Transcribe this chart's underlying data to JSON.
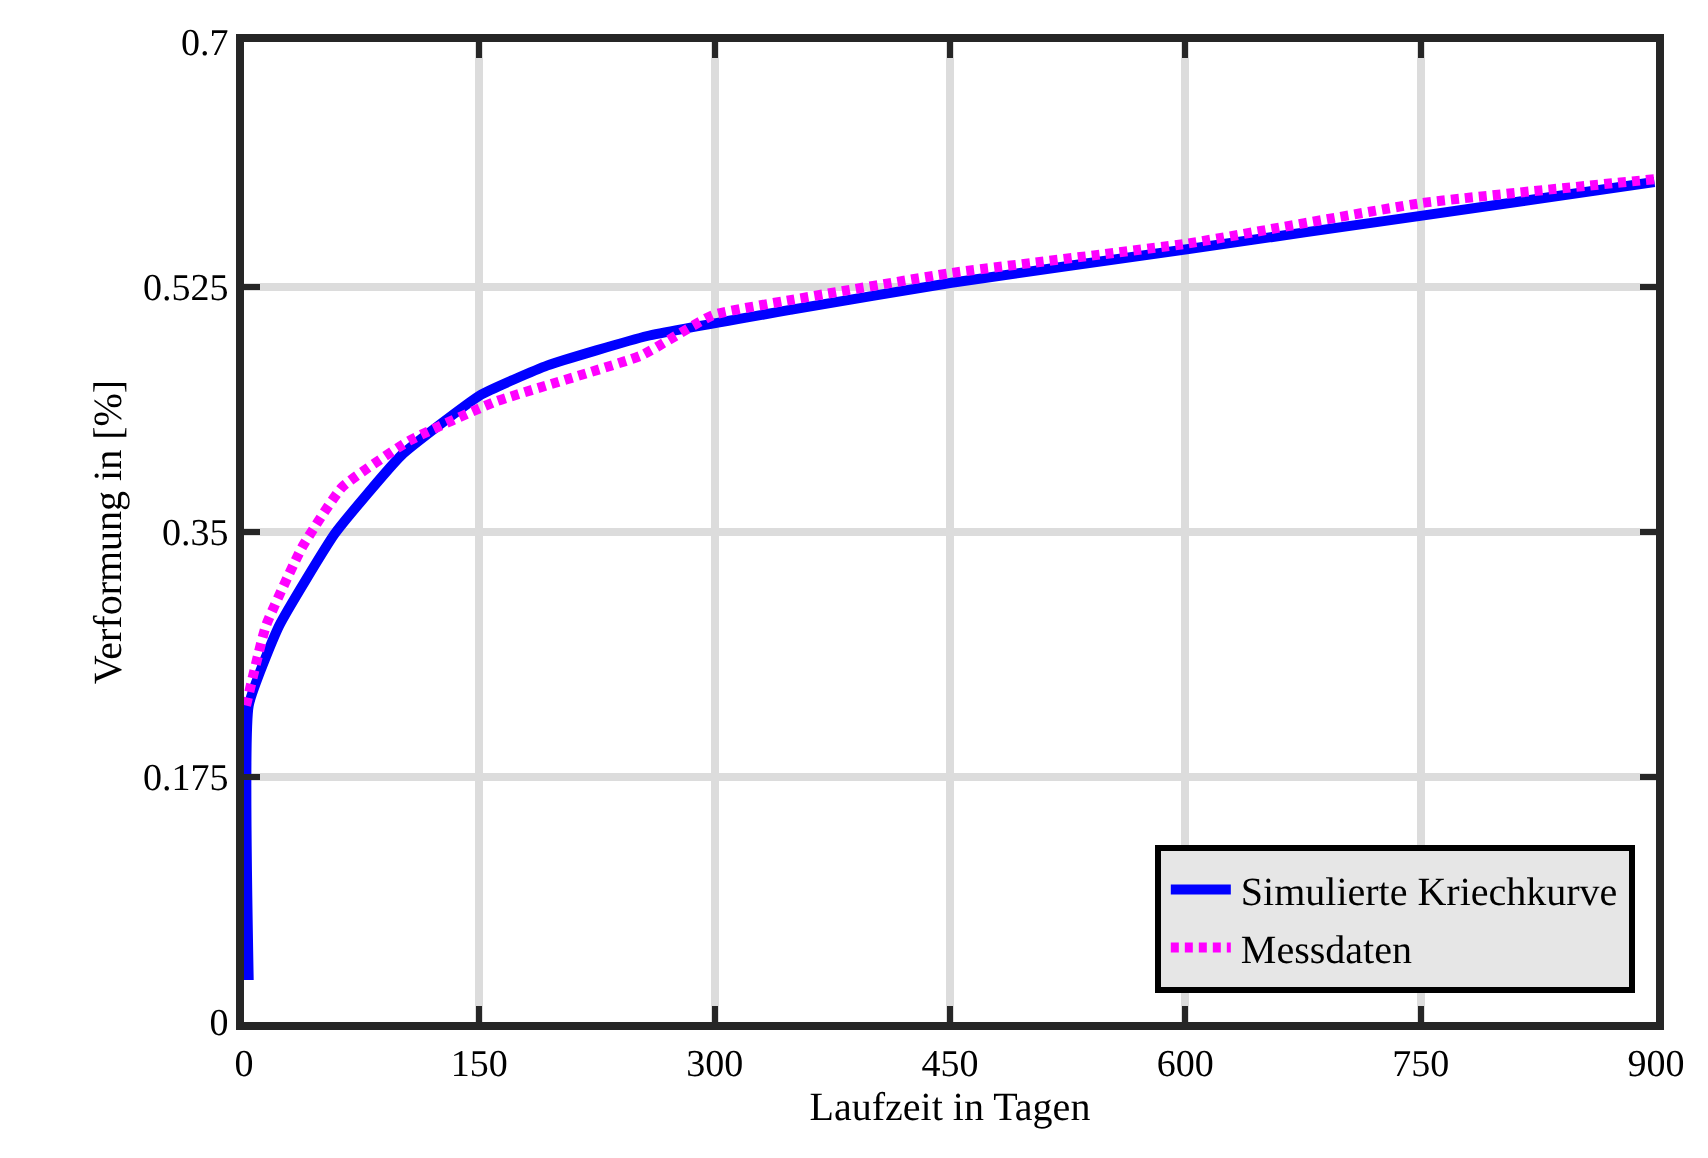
{
  "chart_data": {
    "type": "line",
    "xlabel": "Laufzeit in Tagen",
    "ylabel": "Verformung in [%]",
    "xlim": [
      0,
      900
    ],
    "xticks": [
      0,
      150,
      300,
      450,
      600,
      750,
      900
    ],
    "ylim": [
      0,
      0.7
    ],
    "yticks": [
      0,
      0.175,
      0.35,
      0.525,
      0.7
    ],
    "grid": true,
    "legend": "bottom right",
    "series": [
      {
        "name": "Simulierte Kriechkurve",
        "color": "#0000ff",
        "line_style": "solid",
        "x": [
          3,
          3,
          22.4,
          58,
          100.5,
          151,
          193.5,
          257,
          350,
          451,
          601,
          751,
          899
        ],
        "values": [
          0.03,
          0.226,
          0.283,
          0.349,
          0.405,
          0.448,
          0.469,
          0.49,
          0.509,
          0.528,
          0.552,
          0.576,
          0.6
        ]
      },
      {
        "name": "Messdaten",
        "color": "#ff00ff",
        "line_style": "dotted",
        "x": [
          1.3,
          14,
          37,
          62.5,
          105,
          160,
          253,
          299,
          350,
          451,
          601,
          751,
          899
        ],
        "values": [
          0.226,
          0.283,
          0.339,
          0.382,
          0.415,
          0.443,
          0.476,
          0.505,
          0.516,
          0.535,
          0.556,
          0.585,
          0.602
        ]
      }
    ]
  }
}
